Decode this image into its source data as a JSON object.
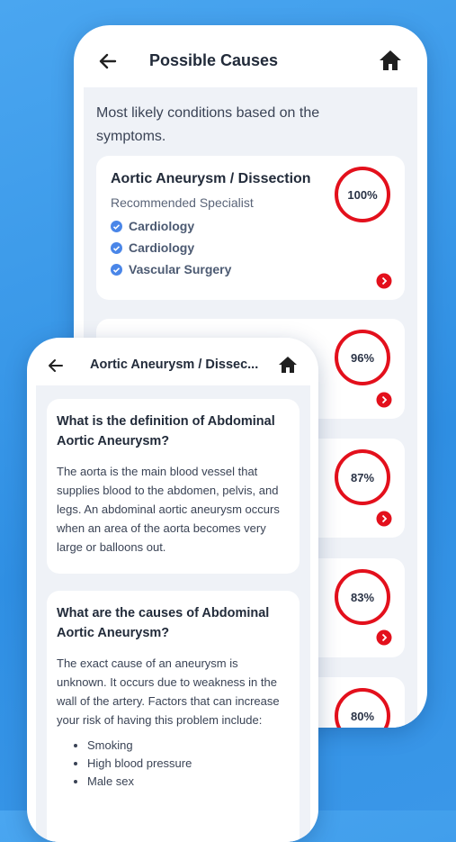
{
  "back_screen": {
    "header": {
      "title": "Possible Causes"
    },
    "intro": "Most likely conditions based on the symptoms.",
    "cards": [
      {
        "title": "Aortic Aneurysm / Dissection",
        "subtitle": "Recommended Specialist",
        "specialists": [
          "Cardiology",
          "Cardiology",
          "Vascular Surgery"
        ],
        "score": "100%"
      },
      {
        "score": "96%"
      },
      {
        "score": "87%"
      },
      {
        "score": "83%"
      },
      {
        "score": "80%"
      }
    ]
  },
  "front_screen": {
    "header": {
      "title": "Aortic Aneurysm / Dissec..."
    },
    "sections": [
      {
        "question": "What is the definition of Abdominal Aortic Aneurysm?",
        "answer": "The aorta is the main blood vessel that supplies blood to the abdomen, pelvis, and legs. An abdominal aortic aneurysm occurs when an area of the aorta becomes very large or balloons out."
      },
      {
        "question": "What are the causes of Abdominal Aortic Aneurysm?",
        "answer": "The exact cause of an aneurysm is unknown. It occurs due to weakness in the wall of the artery. Factors that can increase your risk of having this problem include:",
        "bullets": [
          "Smoking",
          "High blood pressure",
          "Male sex"
        ]
      }
    ]
  }
}
